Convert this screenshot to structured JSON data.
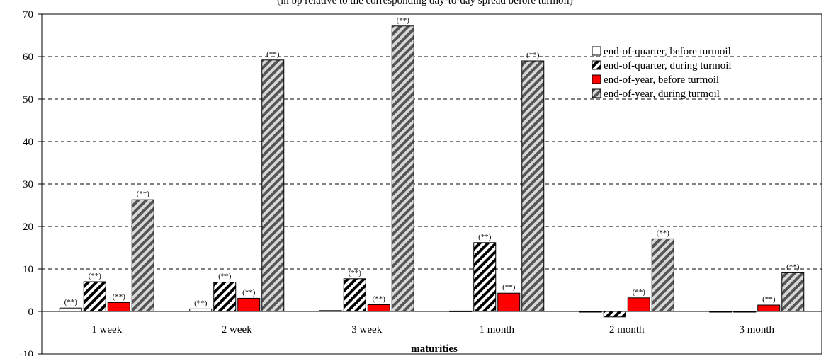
{
  "chart_data": {
    "type": "bar",
    "title": "",
    "top_note_fragment": "(in bp relative to the corresponding day-to-day spread before turmoil)",
    "xlabel": "maturities",
    "ylabel": "",
    "ylim": [
      -10,
      70
    ],
    "yticks": [
      -10,
      0,
      10,
      20,
      30,
      40,
      50,
      60,
      70
    ],
    "grid": true,
    "legend_position": "top-right",
    "categories": [
      "1 week",
      "2 week",
      "3 week",
      "1 month",
      "2 month",
      "3 month"
    ],
    "series": [
      {
        "name": "end-of-quarter, before turmoil",
        "fill": "#ffffff",
        "pattern": "none",
        "values": [
          0.8,
          0.6,
          0.2,
          0.1,
          -0.1,
          0
        ],
        "labels": [
          "(**)",
          "(**)",
          "",
          "",
          "",
          ""
        ]
      },
      {
        "name": "end-of-quarter, during turmoil",
        "fill": "#000000",
        "pattern": "hatch-black",
        "values": [
          7.0,
          6.9,
          7.7,
          16.2,
          -1.3,
          0
        ],
        "labels": [
          "(**)",
          "(**)",
          "(**)",
          "(**)",
          "",
          ""
        ]
      },
      {
        "name": "end-of-year, before turmoil",
        "fill": "#ff0000",
        "pattern": "none",
        "values": [
          2.1,
          3.1,
          1.6,
          4.3,
          3.2,
          1.5
        ],
        "labels": [
          "(**)",
          "(**)",
          "(**)",
          "(**)",
          "(**)",
          "(**)"
        ]
      },
      {
        "name": "end-of-year, during turmoil",
        "fill": "#808080",
        "pattern": "hatch-grey",
        "values": [
          26.3,
          59.2,
          67.2,
          59.0,
          17.1,
          9.1
        ],
        "labels": [
          "(**)",
          "(**)",
          "(**)",
          "(**)",
          "(**)",
          "(**)"
        ]
      }
    ]
  }
}
